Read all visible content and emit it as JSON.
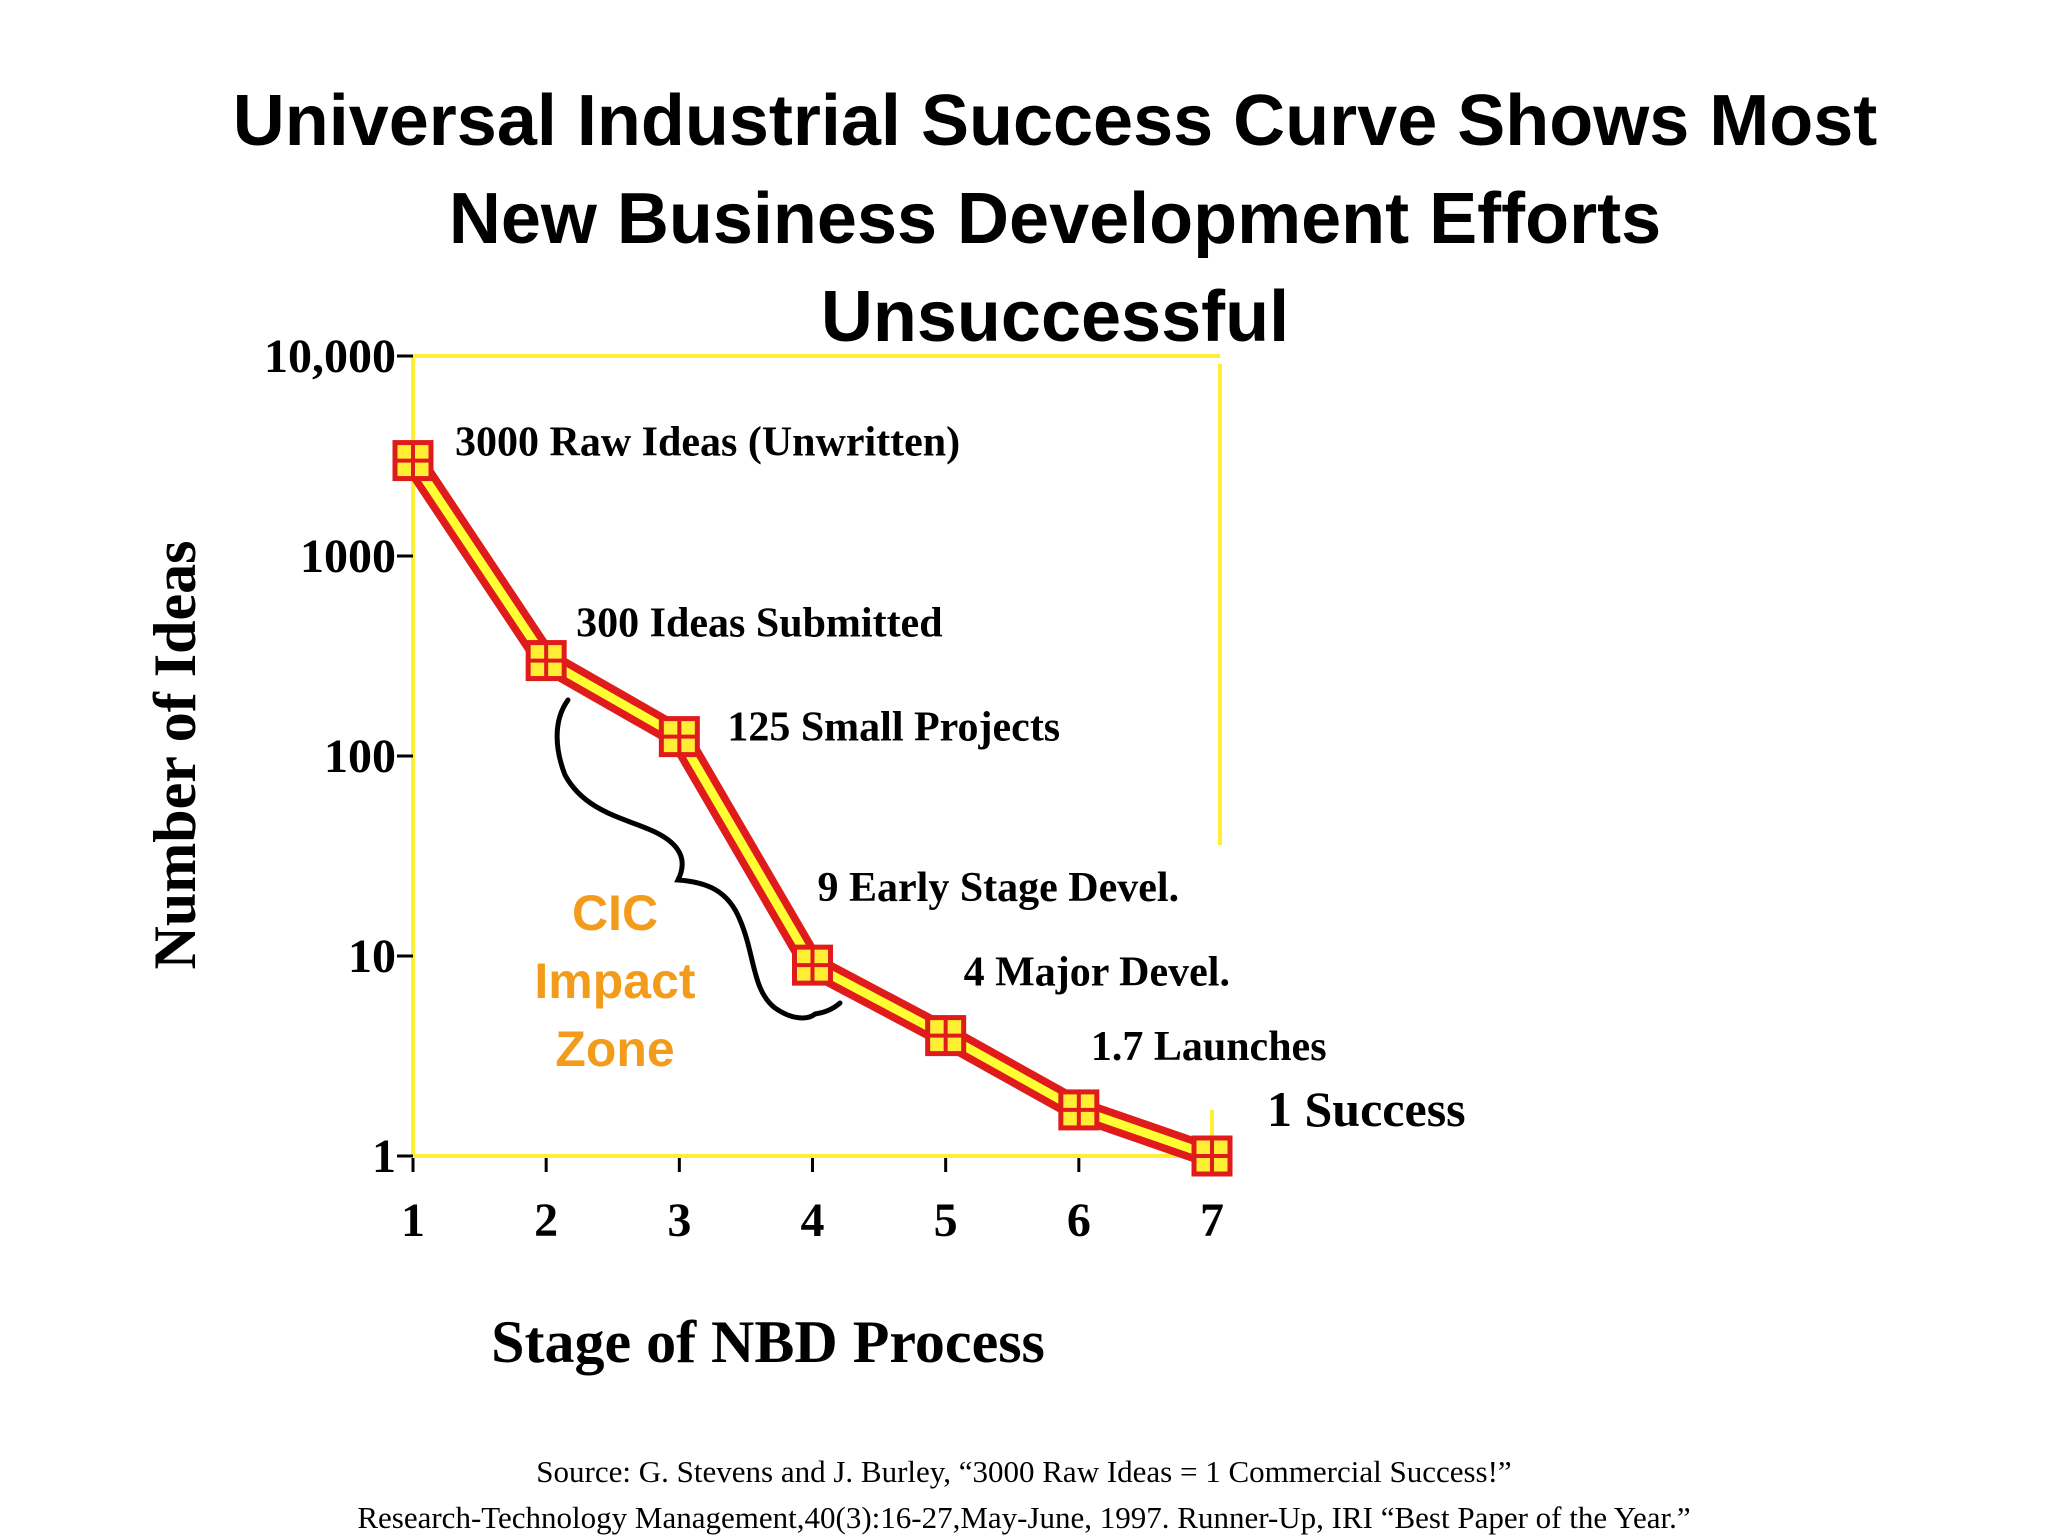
{
  "title": {
    "line1": "Universal Industrial Success Curve Shows Most",
    "line2": "New Business Development Efforts",
    "line3": "Unsuccessful"
  },
  "chart_data": {
    "type": "line",
    "title": "Universal Industrial Success Curve Shows Most New Business Development Efforts Unsuccessful",
    "xlabel": "Stage of NBD Process",
    "ylabel": "Number of Ideas",
    "x": [
      1,
      2,
      3,
      4,
      5,
      6,
      7
    ],
    "y": [
      3000,
      300,
      125,
      9,
      4,
      1.7,
      1
    ],
    "y_scale": "log",
    "ylim": [
      1,
      10000
    ],
    "xlim": [
      1,
      7
    ],
    "x_tick_labels": [
      "1",
      "2",
      "3",
      "4",
      "5",
      "6",
      "7"
    ],
    "y_tick_labels": [
      "10,000",
      "1000",
      "100",
      "10",
      "1"
    ],
    "y_tick_values": [
      10000,
      1000,
      100,
      10,
      1
    ],
    "point_labels": [
      "3000 Raw Ideas (Unwritten)",
      "300 Ideas Submitted",
      "125 Small Projects",
      "9 Early Stage Devel.",
      "4 Major Devel.",
      "1.7 Launches",
      "1 Success"
    ],
    "annotation": {
      "lines": [
        "CIC",
        "Impact",
        "Zone"
      ],
      "spans_stages": [
        2,
        4
      ]
    },
    "grid": false,
    "legend": "none",
    "colors": {
      "line_outer": "#e01b1b",
      "line_inner": "#ffff33",
      "frame": "#ffee33",
      "marker_fill": "#ffee33",
      "marker_edge": "#e01b1b",
      "annotation_text": "#f39c1c"
    }
  },
  "source": {
    "line1": "Source: G. Stevens and J. Burley, “3000 Raw Ideas = 1 Commercial Success!”",
    "line2": "Research-Technology Management,40(3):16-27,May-June, 1997. Runner-Up, IRI “Best Paper of the Year.”"
  }
}
